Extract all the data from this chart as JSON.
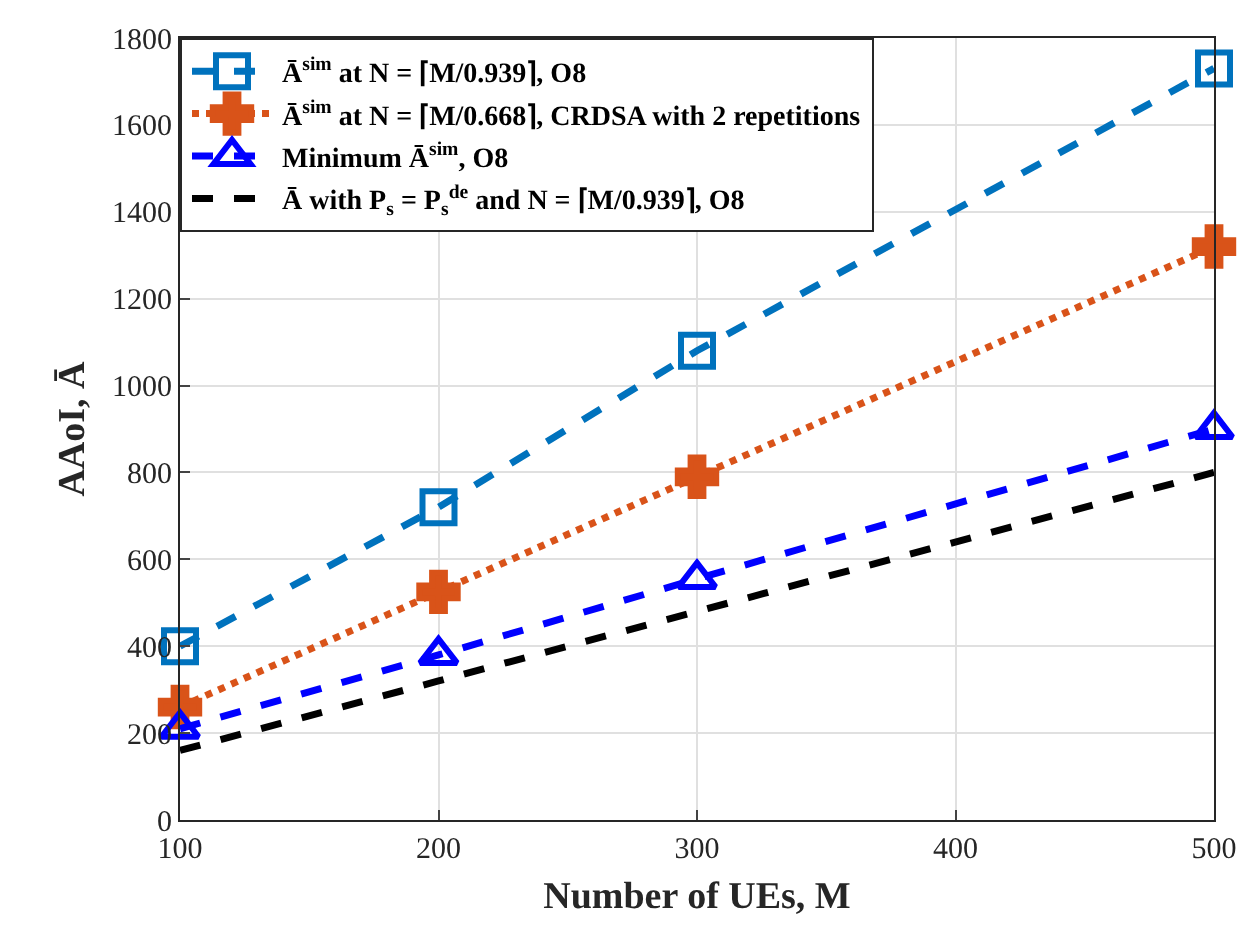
{
  "chart_data": {
    "type": "line",
    "xlabel": "Number of UEs, M",
    "ylabel": "AAoI, Ā",
    "x": [
      100,
      200,
      300,
      500
    ],
    "xlim": [
      100,
      500
    ],
    "xticks": [
      100,
      200,
      300,
      400,
      500
    ],
    "ylim": [
      0,
      1800
    ],
    "yticks": [
      0,
      200,
      400,
      600,
      800,
      1000,
      1200,
      1400,
      1600,
      1800
    ],
    "grid": true,
    "legend": "top left",
    "series": [
      {
        "name": "Ā$^{sim}$ at N = ⌈M/0.939⌉, O8",
        "color": "#0072bd",
        "values": [
          400,
          720,
          1080,
          1730
        ],
        "marker": "square",
        "line_style": "dashed"
      },
      {
        "name": "Ā$^{sim}$ at N = ⌈M/0.668⌉, CRDSA with 2 repetitions",
        "color": "#d95319",
        "values": [
          260,
          525,
          790,
          1320
        ],
        "marker": "cross",
        "line_style": "dotted"
      },
      {
        "name": "Minimum Ā$^{sim}$, O8",
        "color": "#0000ff",
        "values": [
          210,
          380,
          555,
          900
        ],
        "marker": "triangle",
        "line_style": "dashed"
      },
      {
        "name": "Ā with P$_{s}$ = P$_{s}$$^{de}$ and N = ⌈M/0.939⌉, O8",
        "color": "#000000",
        "values": [
          160,
          320,
          480,
          800
        ],
        "marker": "none",
        "line_style": "dashed"
      }
    ]
  }
}
